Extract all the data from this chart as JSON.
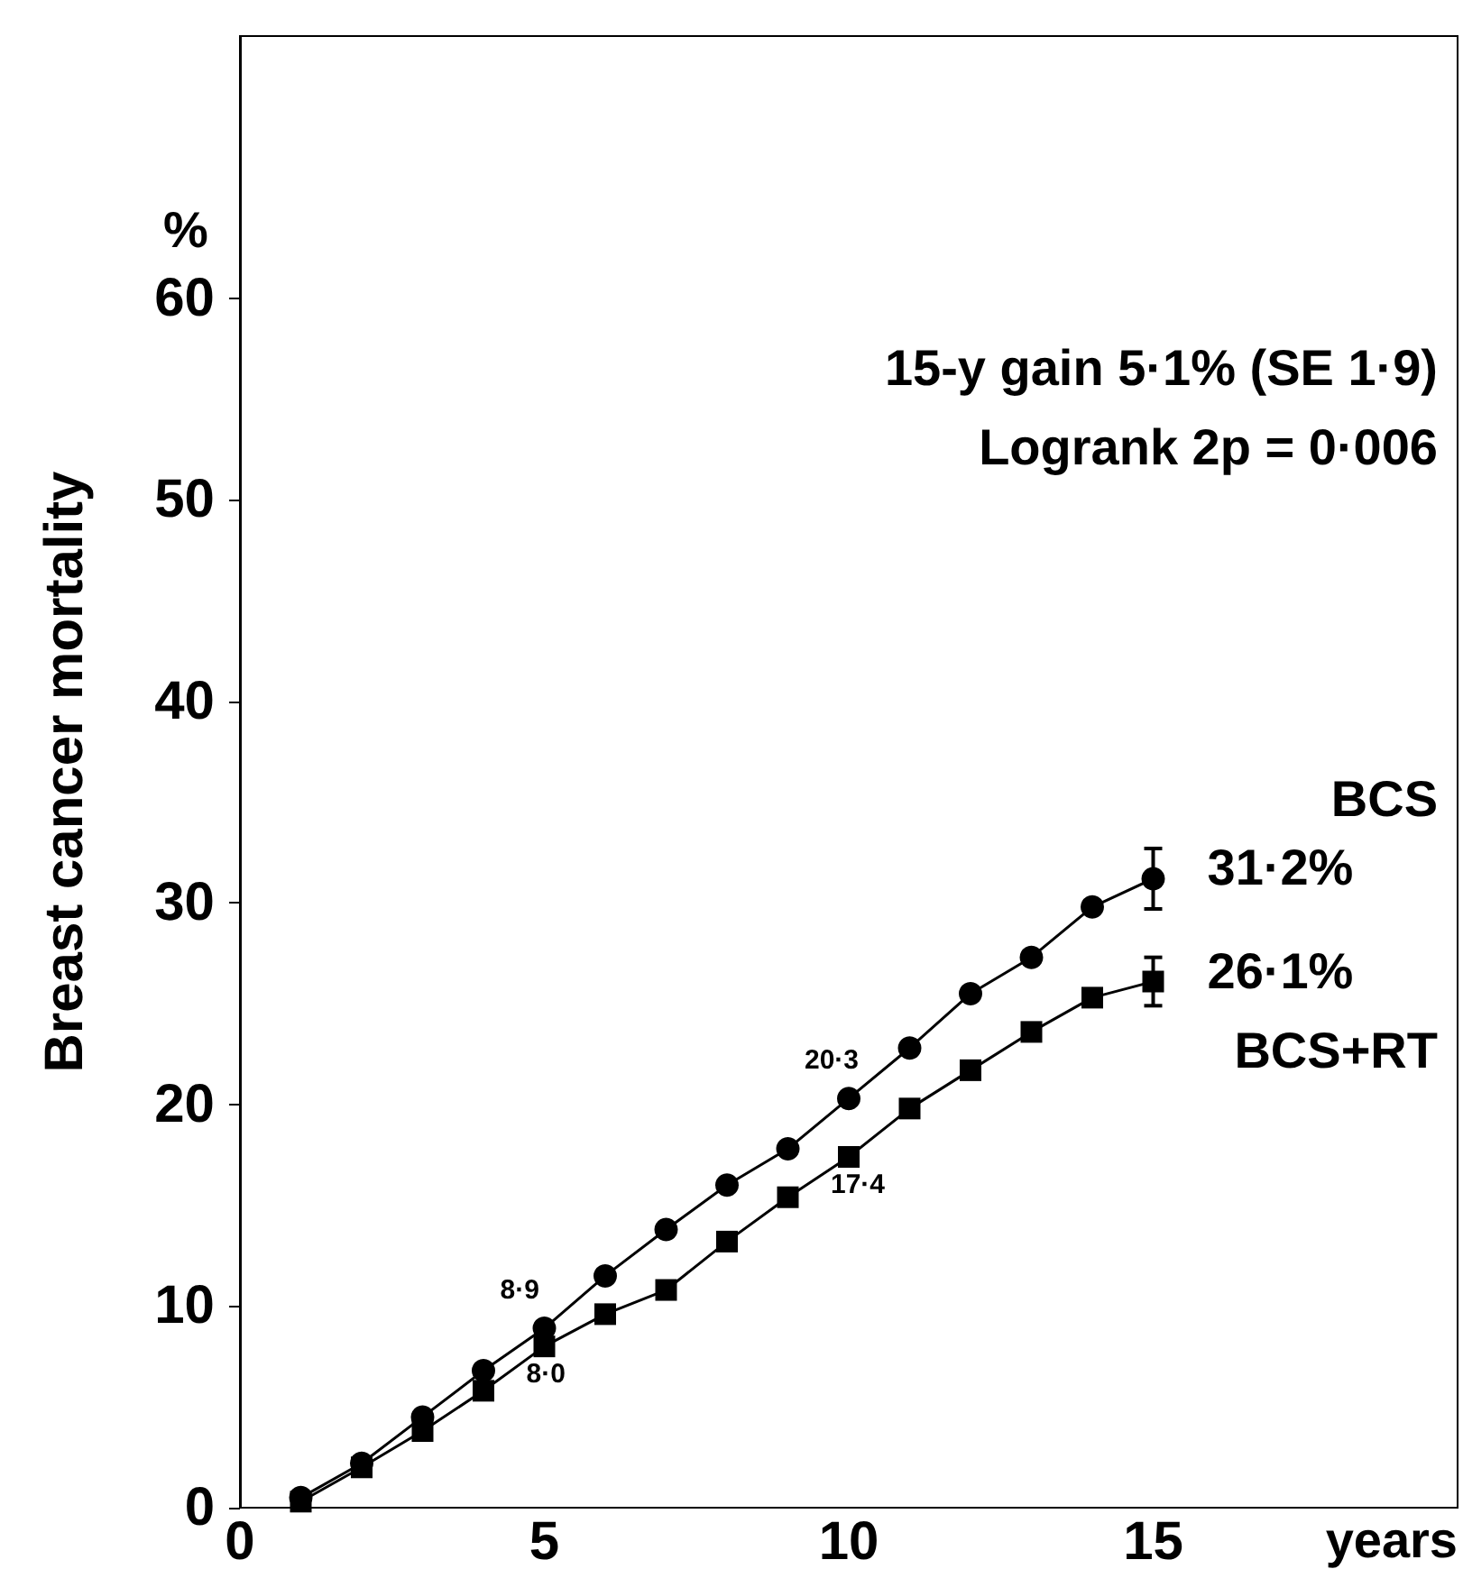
{
  "chart_data": {
    "type": "line",
    "ylabel": "Breast cancer mortality",
    "xlabel": "years",
    "xlim": [
      0,
      20
    ],
    "xticks": [
      0,
      5,
      10,
      15
    ],
    "ylim": [
      0,
      73
    ],
    "yticks": [
      0,
      10,
      20,
      30,
      40,
      50,
      60
    ],
    "grid": false,
    "legend": false,
    "annotations": [
      "%",
      "15-y gain 5·1% (SE 1·9)",
      "Logrank 2p = 0·006",
      {
        "text": "31·2%",
        "x": 15,
        "y": 31.2
      },
      {
        "text": "26·1%",
        "x": 15,
        "y": 26.1
      }
    ],
    "x": [
      1,
      2,
      3,
      4,
      5,
      6,
      7,
      8,
      9,
      10,
      11,
      12,
      13,
      14,
      15
    ],
    "series": [
      {
        "name": "BCS",
        "color": "#000000",
        "marker": "circle",
        "values": [
          0.5,
          2.2,
          4.5,
          6.8,
          8.9,
          11.5,
          13.8,
          16.0,
          17.8,
          20.3,
          22.8,
          25.5,
          27.3,
          29.8,
          31.2
        ],
        "value_labels": [
          null,
          null,
          null,
          null,
          "8·9",
          null,
          null,
          null,
          null,
          "20·3",
          null,
          null,
          null,
          null,
          null
        ],
        "errors": [
          null,
          null,
          null,
          null,
          null,
          null,
          null,
          null,
          null,
          null,
          null,
          null,
          null,
          null,
          1.5
        ]
      },
      {
        "name": "BCS+RT",
        "color": "#000000",
        "marker": "square",
        "values": [
          0.3,
          2.0,
          3.8,
          5.8,
          8.0,
          9.6,
          10.8,
          13.2,
          15.4,
          17.4,
          19.8,
          21.7,
          23.6,
          25.3,
          26.1
        ],
        "value_labels": [
          null,
          null,
          null,
          null,
          "8·0",
          null,
          null,
          null,
          null,
          "17·4",
          null,
          null,
          null,
          null,
          null
        ],
        "errors": [
          null,
          null,
          null,
          null,
          null,
          null,
          null,
          null,
          null,
          null,
          null,
          null,
          null,
          null,
          1.2
        ]
      }
    ]
  }
}
